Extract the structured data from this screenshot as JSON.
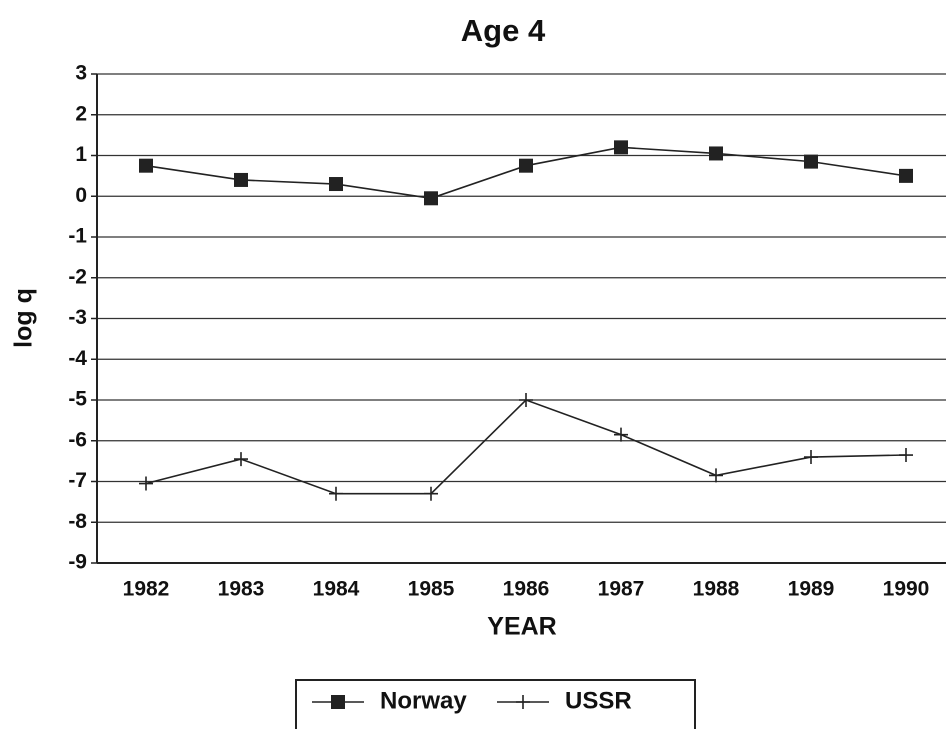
{
  "chart_data": {
    "type": "line",
    "title": "Age 4",
    "xlabel": "YEAR",
    "ylabel": "log q",
    "categories": [
      "1982",
      "1983",
      "1984",
      "1985",
      "1986",
      "1987",
      "1988",
      "1989",
      "1990"
    ],
    "series": [
      {
        "name": "Norway",
        "color": "#222222",
        "marker": "square",
        "values": [
          0.75,
          0.4,
          0.3,
          -0.05,
          0.75,
          1.2,
          1.05,
          0.85,
          0.5
        ]
      },
      {
        "name": "USSR",
        "color": "#222222",
        "marker": "plus",
        "values": [
          -7.05,
          -6.45,
          -7.3,
          -7.3,
          -5.0,
          -5.85,
          -6.85,
          -6.4,
          -6.35
        ]
      }
    ],
    "ylim": [
      -9,
      3
    ],
    "yticks": [
      -9,
      -8,
      -7,
      -6,
      -5,
      -4,
      -3,
      -2,
      -1,
      0,
      1,
      2,
      3
    ],
    "grid": true,
    "legend": "bottom"
  }
}
